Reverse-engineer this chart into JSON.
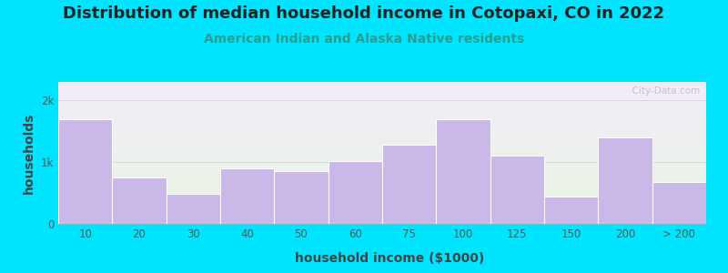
{
  "title": "Distribution of median household income in Cotopaxi, CO in 2022",
  "subtitle": "American Indian and Alaska Native residents",
  "xlabel": "household income ($1000)",
  "ylabel": "households",
  "categories": [
    "10",
    "20",
    "30",
    "40",
    "50",
    "60",
    "75",
    "100",
    "125",
    "150",
    "200",
    "> 200"
  ],
  "values": [
    1700,
    750,
    480,
    900,
    860,
    1020,
    1280,
    1700,
    1100,
    440,
    1400,
    680
  ],
  "bar_color": "#c9b8e8",
  "bar_edge_color": "#ffffff",
  "bg_outer": "#00e5ff",
  "bg_plot_top": "#e8f5e2",
  "bg_plot_bottom": "#f2ecfa",
  "yticks": [
    0,
    1000,
    2000
  ],
  "ytick_labels": [
    "0",
    "1k",
    "2k"
  ],
  "ylim": [
    0,
    2300
  ],
  "title_fontsize": 13,
  "subtitle_fontsize": 10,
  "axis_label_fontsize": 10,
  "tick_fontsize": 8.5,
  "title_color": "#222222",
  "subtitle_color": "#2a9d8f",
  "watermark": "  City-Data.com"
}
